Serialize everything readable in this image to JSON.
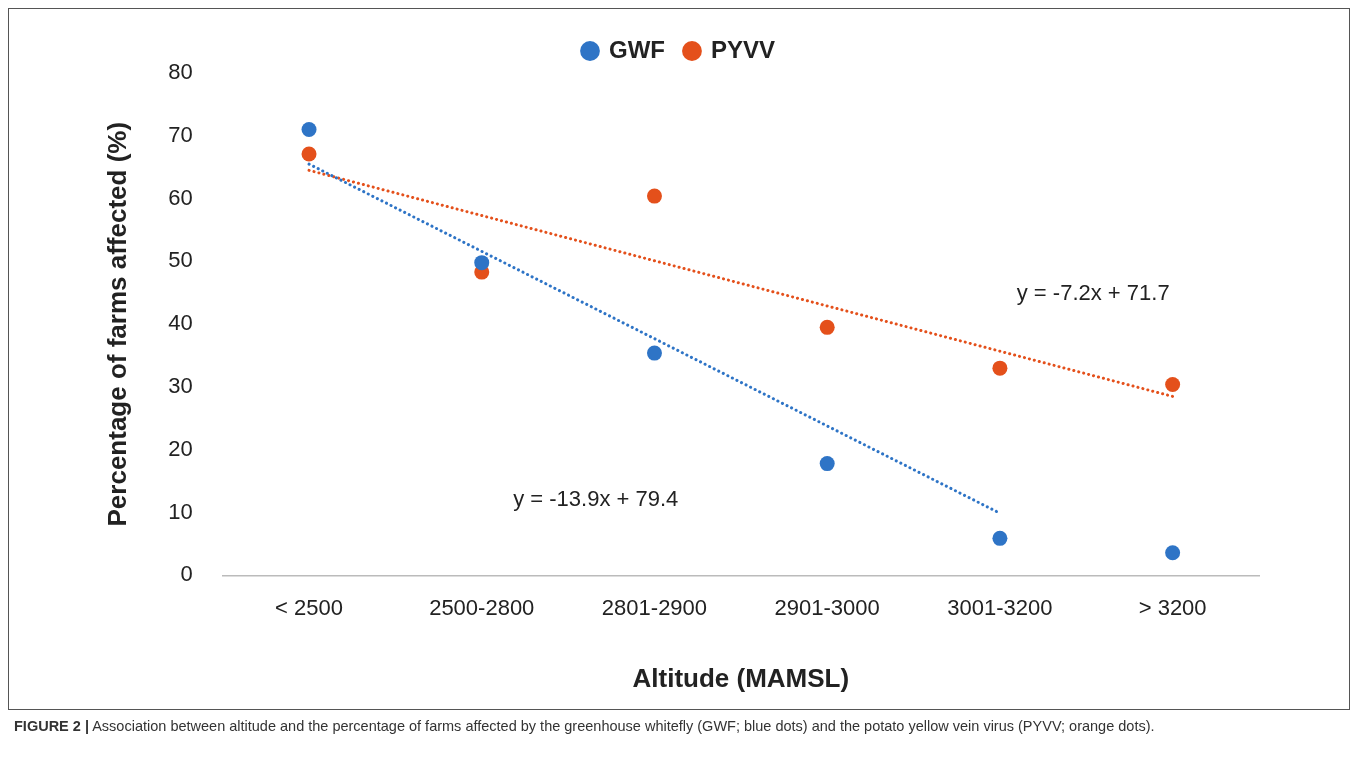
{
  "chart_data": {
    "type": "scatter",
    "xlabel": "Altitude (MAMSL)",
    "ylabel": "Percentage of farms affected (%)",
    "categories": [
      "< 2500",
      "2500-2800",
      "2801-2900",
      "2901-3000",
      "3001-3200",
      "> 3200"
    ],
    "series": [
      {
        "name": "GWF",
        "color": "#2e74c6",
        "values": [
          71.0,
          49.8,
          35.4,
          17.8,
          5.9,
          3.6
        ],
        "marker": "circle"
      },
      {
        "name": "PYVV",
        "color": "#e4501b",
        "values": [
          67.1,
          48.3,
          60.4,
          39.5,
          33.0,
          30.4
        ],
        "marker": "circle"
      },
      {
        "type": "line",
        "color": "#2e74c6",
        "values": [
          65.5,
          51.6,
          37.7,
          23.8,
          9.9,
          null
        ],
        "marker": "none",
        "line_style": "dotted"
      },
      {
        "type": "line",
        "color": "#e4501b",
        "values": [
          64.5,
          57.3,
          50.1,
          42.9,
          35.7,
          28.5
        ],
        "marker": "none",
        "line_style": "dotted"
      }
    ],
    "ylim": [
      0,
      80
    ],
    "yticks": [
      0,
      10,
      20,
      30,
      40,
      50,
      60,
      70,
      80
    ],
    "grid": false,
    "legend": "top",
    "annotations": [
      "y = -7.2x + 71.7",
      "y = -13.9x + 79.4",
      "FIGURE 2 | Association between altitude and the percentage of farms affected by the greenhouse whitefly (GWF; blue dots) and the potato yellow vein virus (PYVV; orange dots)."
    ]
  }
}
